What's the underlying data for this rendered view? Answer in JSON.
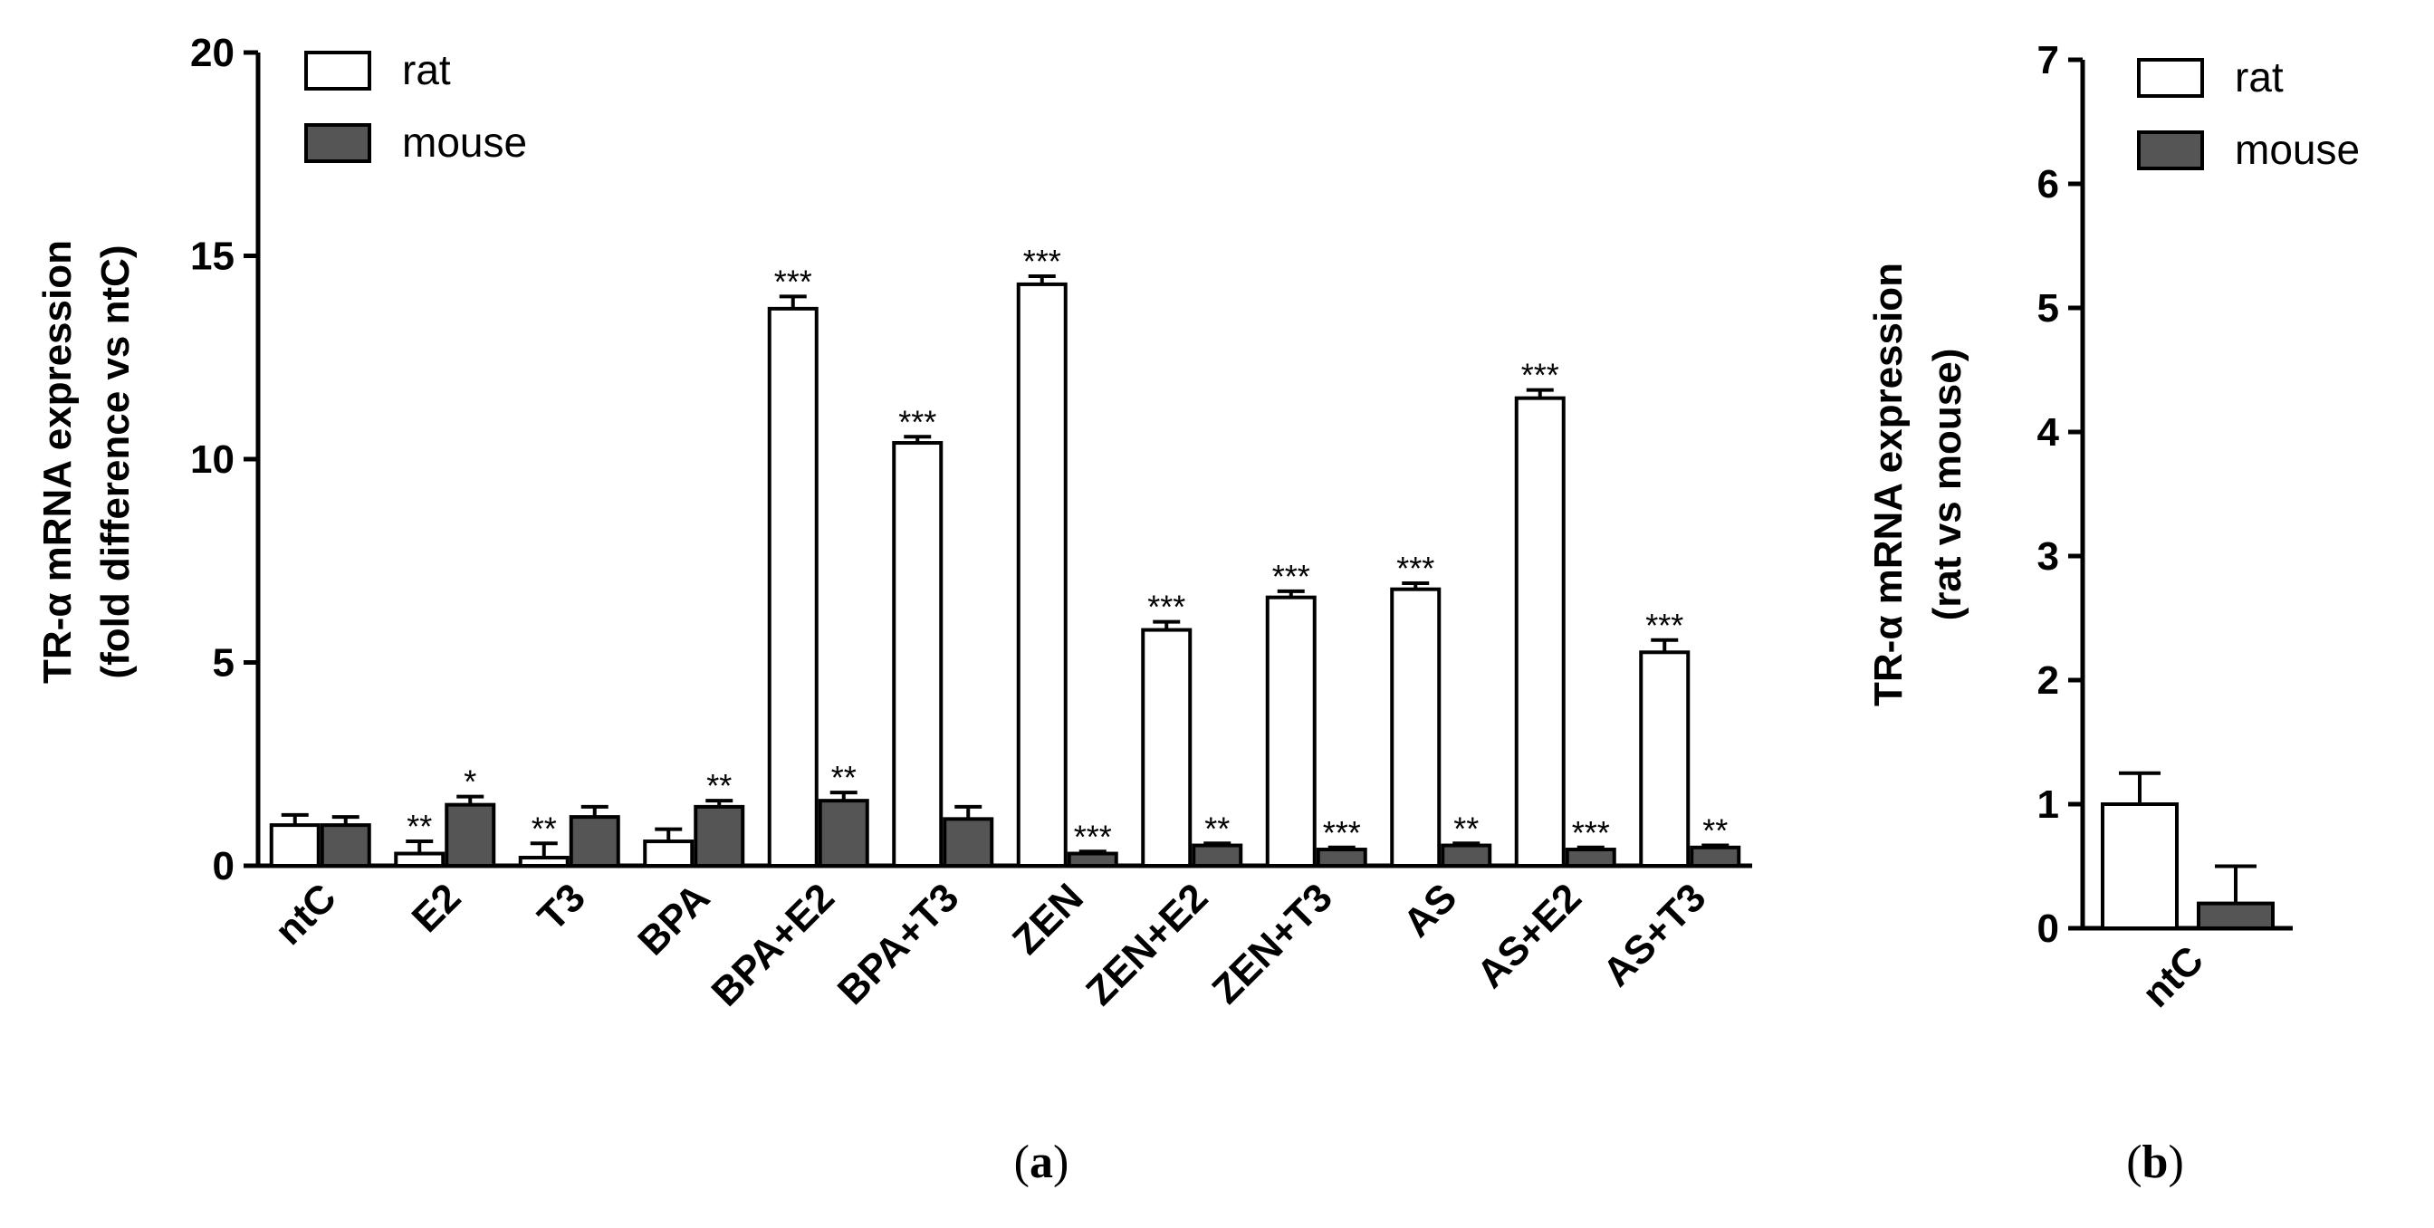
{
  "colors": {
    "rat": "#ffffff",
    "mouse": "#555555",
    "axis": "#000000"
  },
  "chart_data": [
    {
      "type": "bar",
      "panel": "a",
      "ylabel": "TR-α mRNA expression",
      "ylabel_line2": "(fold difference vs ntC)",
      "ylim": [
        0,
        20
      ],
      "yticks": [
        "0",
        "5",
        "10",
        "15",
        "20"
      ],
      "legend": "top-left",
      "categories": [
        "ntC",
        "E2",
        "T3",
        "BPA",
        "BPA+E2",
        "BPA+T3",
        "ZEN",
        "ZEN+E2",
        "ZEN+T3",
        "AS",
        "AS+E2",
        "AS+T3"
      ],
      "series": [
        {
          "name": "rat",
          "values": [
            1.0,
            0.3,
            0.2,
            0.6,
            13.7,
            10.4,
            14.3,
            5.8,
            6.6,
            6.8,
            11.5,
            5.25
          ],
          "errors": [
            0.25,
            0.3,
            0.35,
            0.3,
            0.3,
            0.15,
            0.2,
            0.2,
            0.15,
            0.15,
            0.2,
            0.3
          ],
          "significance": [
            "",
            "**",
            "**",
            "",
            "***",
            "***",
            "***",
            "***",
            "***",
            "***",
            "***",
            "***"
          ]
        },
        {
          "name": "mouse",
          "values": [
            1.0,
            1.5,
            1.2,
            1.45,
            1.6,
            1.15,
            0.3,
            0.5,
            0.4,
            0.5,
            0.4,
            0.45
          ],
          "errors": [
            0.2,
            0.2,
            0.25,
            0.15,
            0.2,
            0.3,
            0.05,
            0.05,
            0.05,
            0.05,
            0.05,
            0.05
          ],
          "significance": [
            "",
            "*",
            "",
            "**",
            "**",
            "",
            "***",
            "**",
            "***",
            "**",
            "***",
            "**"
          ]
        }
      ]
    },
    {
      "type": "bar",
      "panel": "b",
      "ylabel": "TR-α mRNA expression",
      "ylabel_line2": "(rat vs mouse)",
      "ylim": [
        0,
        7
      ],
      "yticks": [
        "0",
        "1",
        "2",
        "3",
        "4",
        "5",
        "6",
        "7"
      ],
      "legend": "top-left",
      "categories": [
        "ntC"
      ],
      "series": [
        {
          "name": "rat",
          "values": [
            1.0
          ],
          "errors": [
            0.25
          ]
        },
        {
          "name": "mouse",
          "values": [
            0.2
          ],
          "errors": [
            0.3
          ]
        }
      ]
    }
  ],
  "labels": {
    "panel_a_open": "(",
    "panel_a_letter": "a",
    "panel_a_close": ")",
    "panel_b_open": "(",
    "panel_b_letter": "b",
    "panel_b_close": ")"
  }
}
